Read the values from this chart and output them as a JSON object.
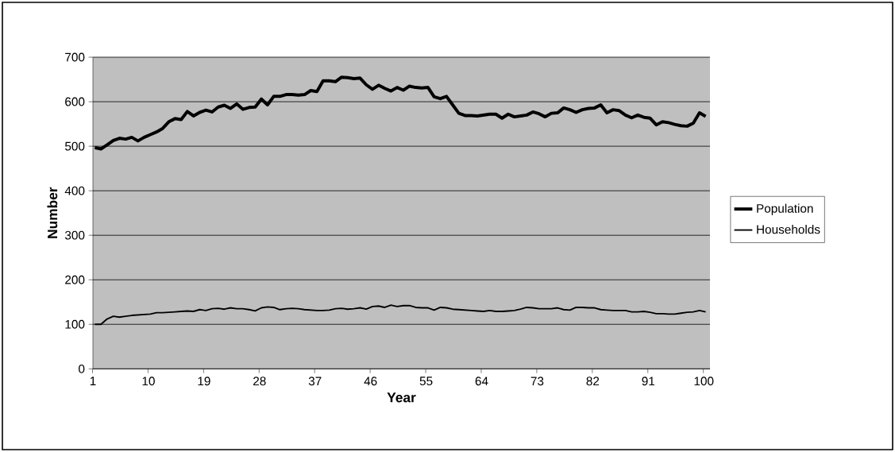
{
  "chart_data": {
    "type": "line",
    "xlabel": "Year",
    "ylabel": "Number",
    "categories": [
      "1",
      null,
      null,
      null,
      null,
      null,
      null,
      null,
      null,
      "10",
      null,
      null,
      null,
      null,
      null,
      null,
      null,
      null,
      "19",
      null,
      null,
      null,
      null,
      null,
      null,
      null,
      null,
      "28",
      null,
      null,
      null,
      null,
      null,
      null,
      null,
      null,
      "37",
      null,
      null,
      null,
      null,
      null,
      null,
      null,
      null,
      "46",
      null,
      null,
      null,
      null,
      null,
      null,
      null,
      null,
      "55",
      null,
      null,
      null,
      null,
      null,
      null,
      null,
      null,
      "64",
      null,
      null,
      null,
      null,
      null,
      null,
      null,
      null,
      "73",
      null,
      null,
      null,
      null,
      null,
      null,
      null,
      null,
      "82",
      null,
      null,
      null,
      null,
      null,
      null,
      null,
      null,
      "91",
      null,
      null,
      null,
      null,
      null,
      null,
      null,
      null,
      "100"
    ],
    "series": [
      {
        "name": "Population",
        "color": "#000000",
        "values": [
          497,
          494,
          503,
          513,
          518,
          516,
          520,
          512,
          520,
          526,
          532,
          540,
          555,
          562,
          560,
          578,
          568,
          576,
          581,
          577,
          588,
          592,
          585,
          595,
          583,
          587,
          588,
          606,
          593,
          612,
          612,
          616,
          616,
          615,
          616,
          625,
          623,
          647,
          647,
          645,
          655,
          654,
          652,
          653,
          638,
          628,
          637,
          630,
          624,
          632,
          626,
          635,
          632,
          631,
          632,
          611,
          607,
          612,
          593,
          574,
          569,
          569,
          568,
          570,
          572,
          572,
          563,
          572,
          566,
          568,
          570,
          577,
          573,
          566,
          574,
          575,
          586,
          582,
          576,
          582,
          585,
          586,
          593,
          575,
          582,
          580,
          570,
          564,
          570,
          565,
          563,
          548,
          555,
          553,
          549,
          546,
          545,
          552,
          575,
          567
        ]
      },
      {
        "name": "Households",
        "color": "#000000",
        "values": [
          100,
          100,
          112,
          118,
          116,
          118,
          120,
          121,
          122,
          123,
          126,
          126,
          127,
          128,
          129,
          130,
          129,
          133,
          131,
          135,
          136,
          134,
          137,
          135,
          135,
          133,
          130,
          137,
          139,
          138,
          133,
          135,
          136,
          135,
          133,
          132,
          131,
          131,
          132,
          135,
          136,
          134,
          135,
          137,
          134,
          140,
          141,
          138,
          143,
          140,
          142,
          142,
          138,
          137,
          137,
          132,
          138,
          137,
          134,
          133,
          132,
          131,
          130,
          129,
          131,
          129,
          129,
          130,
          131,
          134,
          138,
          137,
          135,
          135,
          135,
          137,
          133,
          132,
          138,
          138,
          137,
          137,
          133,
          132,
          131,
          131,
          131,
          128,
          128,
          129,
          127,
          124,
          124,
          123,
          123,
          125,
          127,
          128,
          131,
          128
        ]
      }
    ],
    "ylim": [
      0,
      700
    ],
    "yticks": [
      0,
      100,
      200,
      300,
      400,
      500,
      600,
      700
    ],
    "grid": "y",
    "legend": "right",
    "marker": "none",
    "line_style": "solid"
  }
}
